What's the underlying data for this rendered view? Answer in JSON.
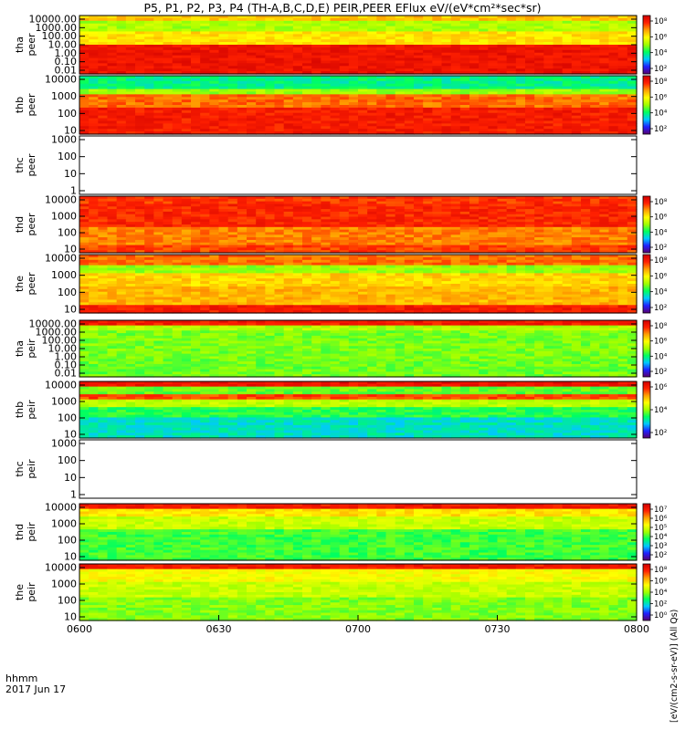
{
  "chart_data": {
    "type": "heatmap",
    "title": "P5, P1, P2, P3, P4 (TH-A,B,C,D,E) PEIR,PEER EFlux eV/(eV*cm²*sec*sr)",
    "x_ticks": [
      "0600",
      "0630",
      "0700",
      "0730",
      "0800"
    ],
    "x_label_line1": "hhmm",
    "x_label_line2": "2017 Jun 17",
    "colorbar_label": "[eV/(cm2-s-sr-eV)] (All Qs)",
    "colorbar_scale": "log",
    "colormap": [
      "#5a006e",
      "#2020ff",
      "#00c8ff",
      "#00ff60",
      "#a0ff00",
      "#ffff00",
      "#ffa000",
      "#ff2000",
      "#d00000"
    ],
    "panels": [
      {
        "label": [
          "tha",
          "peer"
        ],
        "yscale": "log",
        "y_ticks": [
          "10000.00",
          "1000.00",
          "100.00",
          "10.00",
          "1.00",
          "0.10",
          "0.01"
        ],
        "colorbar_ticks": [
          "10⁸",
          "10⁶",
          "10⁴",
          "10²"
        ],
        "has_data": true
      },
      {
        "label": [
          "thb",
          "peer"
        ],
        "yscale": "log",
        "y_ticks": [
          "10000",
          "1000",
          "100",
          "10"
        ],
        "colorbar_ticks": [
          "10⁸",
          "10⁶",
          "10⁴",
          "10²"
        ],
        "has_data": true
      },
      {
        "label": [
          "thc",
          "peer"
        ],
        "yscale": "log",
        "y_ticks": [
          "1000",
          "100",
          "10",
          "1"
        ],
        "colorbar_ticks": [],
        "has_data": false
      },
      {
        "label": [
          "thd",
          "peer"
        ],
        "yscale": "log",
        "y_ticks": [
          "10000",
          "1000",
          "100",
          "10"
        ],
        "colorbar_ticks": [
          "10⁸",
          "10⁶",
          "10⁴",
          "10²"
        ],
        "has_data": true
      },
      {
        "label": [
          "the",
          "peer"
        ],
        "yscale": "log",
        "y_ticks": [
          "10000",
          "1000",
          "100",
          "10"
        ],
        "colorbar_ticks": [
          "10⁸",
          "10⁶",
          "10⁴",
          "10²"
        ],
        "has_data": true
      },
      {
        "label": [
          "tha",
          "peir"
        ],
        "yscale": "log",
        "y_ticks": [
          "10000.00",
          "1000.00",
          "100.00",
          "10.00",
          "1.00",
          "0.10",
          "0.01"
        ],
        "colorbar_ticks": [
          "10⁸",
          "10⁶",
          "10⁴",
          "10²"
        ],
        "has_data": true
      },
      {
        "label": [
          "thb",
          "peir"
        ],
        "yscale": "log",
        "y_ticks": [
          "10000",
          "1000",
          "100",
          "10"
        ],
        "colorbar_ticks": [
          "10⁶",
          "10⁴",
          "10²"
        ],
        "has_data": true
      },
      {
        "label": [
          "thc",
          "peir"
        ],
        "yscale": "log",
        "y_ticks": [
          "1000",
          "100",
          "10",
          "1"
        ],
        "colorbar_ticks": [],
        "has_data": false
      },
      {
        "label": [
          "thd",
          "peir"
        ],
        "yscale": "log",
        "y_ticks": [
          "10000",
          "1000",
          "100",
          "10"
        ],
        "colorbar_ticks": [
          "10⁷",
          "10⁶",
          "10⁵",
          "10⁴",
          "10³",
          "10²"
        ],
        "has_data": true
      },
      {
        "label": [
          "the",
          "peir"
        ],
        "yscale": "log",
        "y_ticks": [
          "10000",
          "1000",
          "100",
          "10"
        ],
        "colorbar_ticks": [
          "10⁸",
          "10⁶",
          "10⁴",
          "10²",
          "10⁰"
        ],
        "has_data": true
      }
    ]
  }
}
